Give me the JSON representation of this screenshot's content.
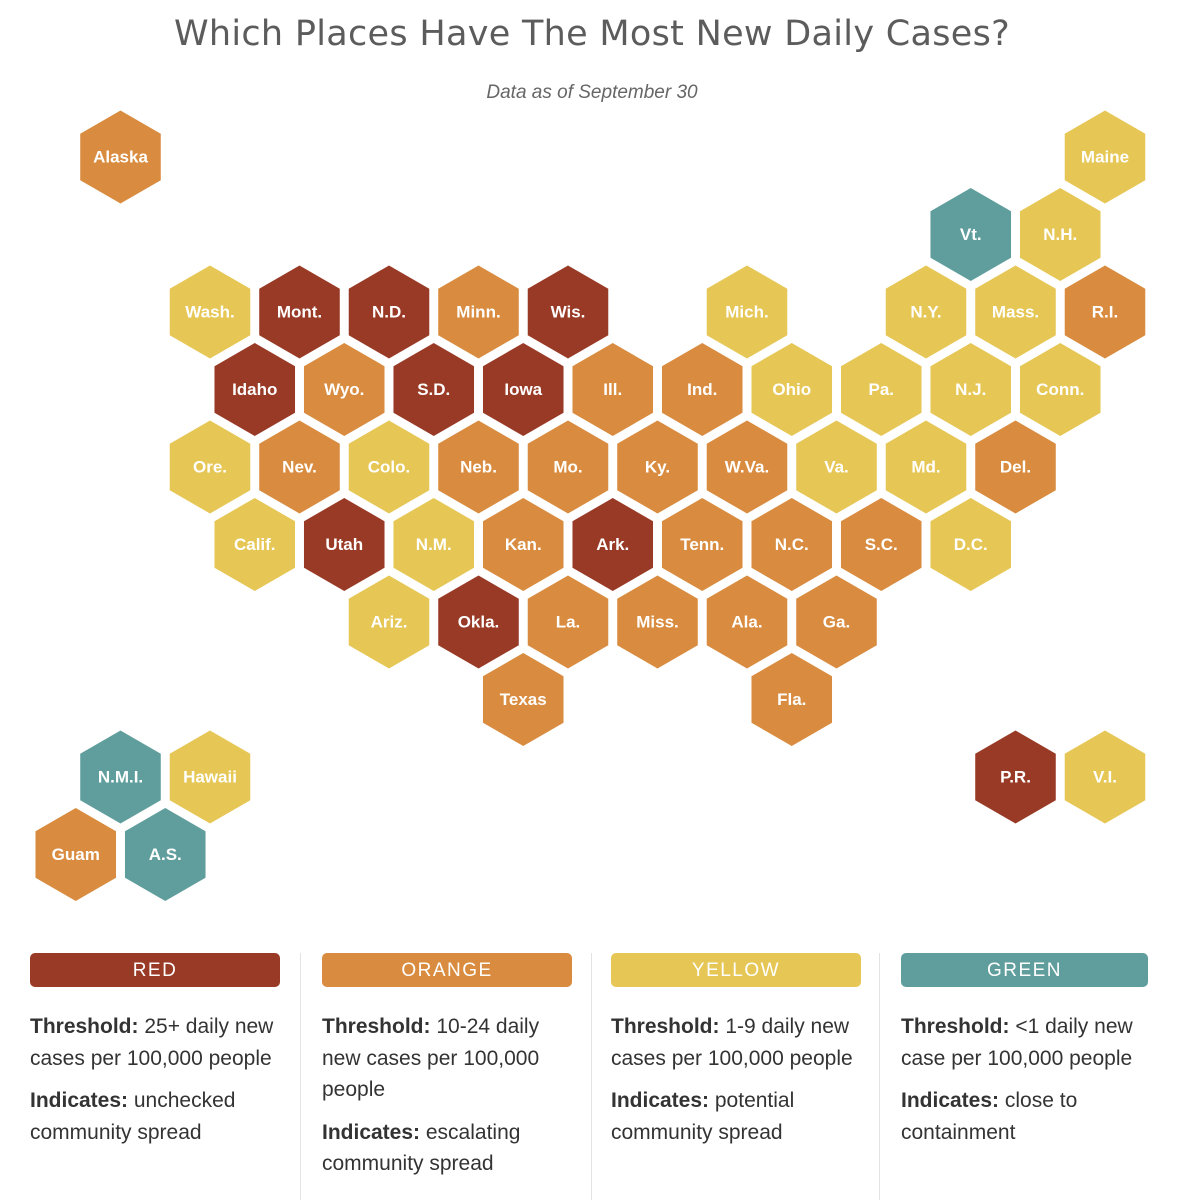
{
  "title": "Which Places Have The Most New Daily Cases?",
  "subtitle": "Data as of September 30",
  "colors": {
    "red": "#993a26",
    "orange": "#d98c3f",
    "yellow": "#e6c755",
    "green": "#609e9d"
  },
  "states": [
    {
      "label": "Alaska",
      "level": "orange",
      "row": 0,
      "col": 0
    },
    {
      "label": "Maine",
      "level": "yellow",
      "row": 0,
      "col": 11
    },
    {
      "label": "Vt.",
      "level": "green",
      "row": 1,
      "col": 9.5
    },
    {
      "label": "N.H.",
      "level": "yellow",
      "row": 1,
      "col": 10.5
    },
    {
      "label": "Wash.",
      "level": "yellow",
      "row": 2,
      "col": 1
    },
    {
      "label": "Mont.",
      "level": "red",
      "row": 2,
      "col": 2
    },
    {
      "label": "N.D.",
      "level": "red",
      "row": 2,
      "col": 3
    },
    {
      "label": "Minn.",
      "level": "orange",
      "row": 2,
      "col": 4
    },
    {
      "label": "Wis.",
      "level": "red",
      "row": 2,
      "col": 5
    },
    {
      "label": "Mich.",
      "level": "yellow",
      "row": 2,
      "col": 7
    },
    {
      "label": "N.Y.",
      "level": "yellow",
      "row": 2,
      "col": 9
    },
    {
      "label": "Mass.",
      "level": "yellow",
      "row": 2,
      "col": 10
    },
    {
      "label": "R.I.",
      "level": "orange",
      "row": 2,
      "col": 11
    },
    {
      "label": "Idaho",
      "level": "red",
      "row": 3,
      "col": 1.5
    },
    {
      "label": "Wyo.",
      "level": "orange",
      "row": 3,
      "col": 2.5
    },
    {
      "label": "S.D.",
      "level": "red",
      "row": 3,
      "col": 3.5
    },
    {
      "label": "Iowa",
      "level": "red",
      "row": 3,
      "col": 4.5
    },
    {
      "label": "Ill.",
      "level": "orange",
      "row": 3,
      "col": 5.5
    },
    {
      "label": "Ind.",
      "level": "orange",
      "row": 3,
      "col": 6.5
    },
    {
      "label": "Ohio",
      "level": "yellow",
      "row": 3,
      "col": 7.5
    },
    {
      "label": "Pa.",
      "level": "yellow",
      "row": 3,
      "col": 8.5
    },
    {
      "label": "N.J.",
      "level": "yellow",
      "row": 3,
      "col": 9.5
    },
    {
      "label": "Conn.",
      "level": "yellow",
      "row": 3,
      "col": 10.5
    },
    {
      "label": "Ore.",
      "level": "yellow",
      "row": 4,
      "col": 1
    },
    {
      "label": "Nev.",
      "level": "orange",
      "row": 4,
      "col": 2
    },
    {
      "label": "Colo.",
      "level": "yellow",
      "row": 4,
      "col": 3
    },
    {
      "label": "Neb.",
      "level": "orange",
      "row": 4,
      "col": 4
    },
    {
      "label": "Mo.",
      "level": "orange",
      "row": 4,
      "col": 5
    },
    {
      "label": "Ky.",
      "level": "orange",
      "row": 4,
      "col": 6
    },
    {
      "label": "W.Va.",
      "level": "orange",
      "row": 4,
      "col": 7
    },
    {
      "label": "Va.",
      "level": "yellow",
      "row": 4,
      "col": 8
    },
    {
      "label": "Md.",
      "level": "yellow",
      "row": 4,
      "col": 9
    },
    {
      "label": "Del.",
      "level": "orange",
      "row": 4,
      "col": 10
    },
    {
      "label": "Calif.",
      "level": "yellow",
      "row": 5,
      "col": 1.5
    },
    {
      "label": "Utah",
      "level": "red",
      "row": 5,
      "col": 2.5
    },
    {
      "label": "N.M.",
      "level": "yellow",
      "row": 5,
      "col": 3.5
    },
    {
      "label": "Kan.",
      "level": "orange",
      "row": 5,
      "col": 4.5
    },
    {
      "label": "Ark.",
      "level": "red",
      "row": 5,
      "col": 5.5
    },
    {
      "label": "Tenn.",
      "level": "orange",
      "row": 5,
      "col": 6.5
    },
    {
      "label": "N.C.",
      "level": "orange",
      "row": 5,
      "col": 7.5
    },
    {
      "label": "S.C.",
      "level": "orange",
      "row": 5,
      "col": 8.5
    },
    {
      "label": "D.C.",
      "level": "yellow",
      "row": 5,
      "col": 9.5
    },
    {
      "label": "Ariz.",
      "level": "yellow",
      "row": 6,
      "col": 3
    },
    {
      "label": "Okla.",
      "level": "red",
      "row": 6,
      "col": 4
    },
    {
      "label": "La.",
      "level": "orange",
      "row": 6,
      "col": 5
    },
    {
      "label": "Miss.",
      "level": "orange",
      "row": 6,
      "col": 6
    },
    {
      "label": "Ala.",
      "level": "orange",
      "row": 6,
      "col": 7
    },
    {
      "label": "Ga.",
      "level": "orange",
      "row": 6,
      "col": 8
    },
    {
      "label": "Texas",
      "level": "orange",
      "row": 7,
      "col": 4.5
    },
    {
      "label": "Fla.",
      "level": "orange",
      "row": 7,
      "col": 7.5
    },
    {
      "label": "N.M.I.",
      "level": "green",
      "row": 8,
      "col": 0
    },
    {
      "label": "Hawaii",
      "level": "yellow",
      "row": 8,
      "col": 1
    },
    {
      "label": "P.R.",
      "level": "red",
      "row": 8,
      "col": 10
    },
    {
      "label": "V.I.",
      "level": "yellow",
      "row": 8,
      "col": 11
    },
    {
      "label": "Guam",
      "level": "orange",
      "row": 9,
      "col": -0.5
    },
    {
      "label": "A.S.",
      "level": "green",
      "row": 9,
      "col": 0.5
    }
  ],
  "legend": [
    {
      "level": "red",
      "label": "RED",
      "threshold_label": "Threshold:",
      "threshold": "25+ daily new cases per 100,000 people",
      "indicates_label": "Indicates:",
      "indicates": "unchecked community spread"
    },
    {
      "level": "orange",
      "label": "ORANGE",
      "threshold_label": "Threshold:",
      "threshold": "10-24 daily new cases per 100,000 people",
      "indicates_label": "Indicates:",
      "indicates": "escalating community spread"
    },
    {
      "level": "yellow",
      "label": "YELLOW",
      "threshold_label": "Threshold:",
      "threshold": "1-9 daily new cases per 100,000 people",
      "indicates_label": "Indicates:",
      "indicates": "potential community spread"
    },
    {
      "level": "green",
      "label": "GREEN",
      "threshold_label": "Threshold:",
      "threshold": "<1 daily new case per 100,000 people",
      "indicates_label": "Indicates:",
      "indicates": "close to containment"
    }
  ]
}
